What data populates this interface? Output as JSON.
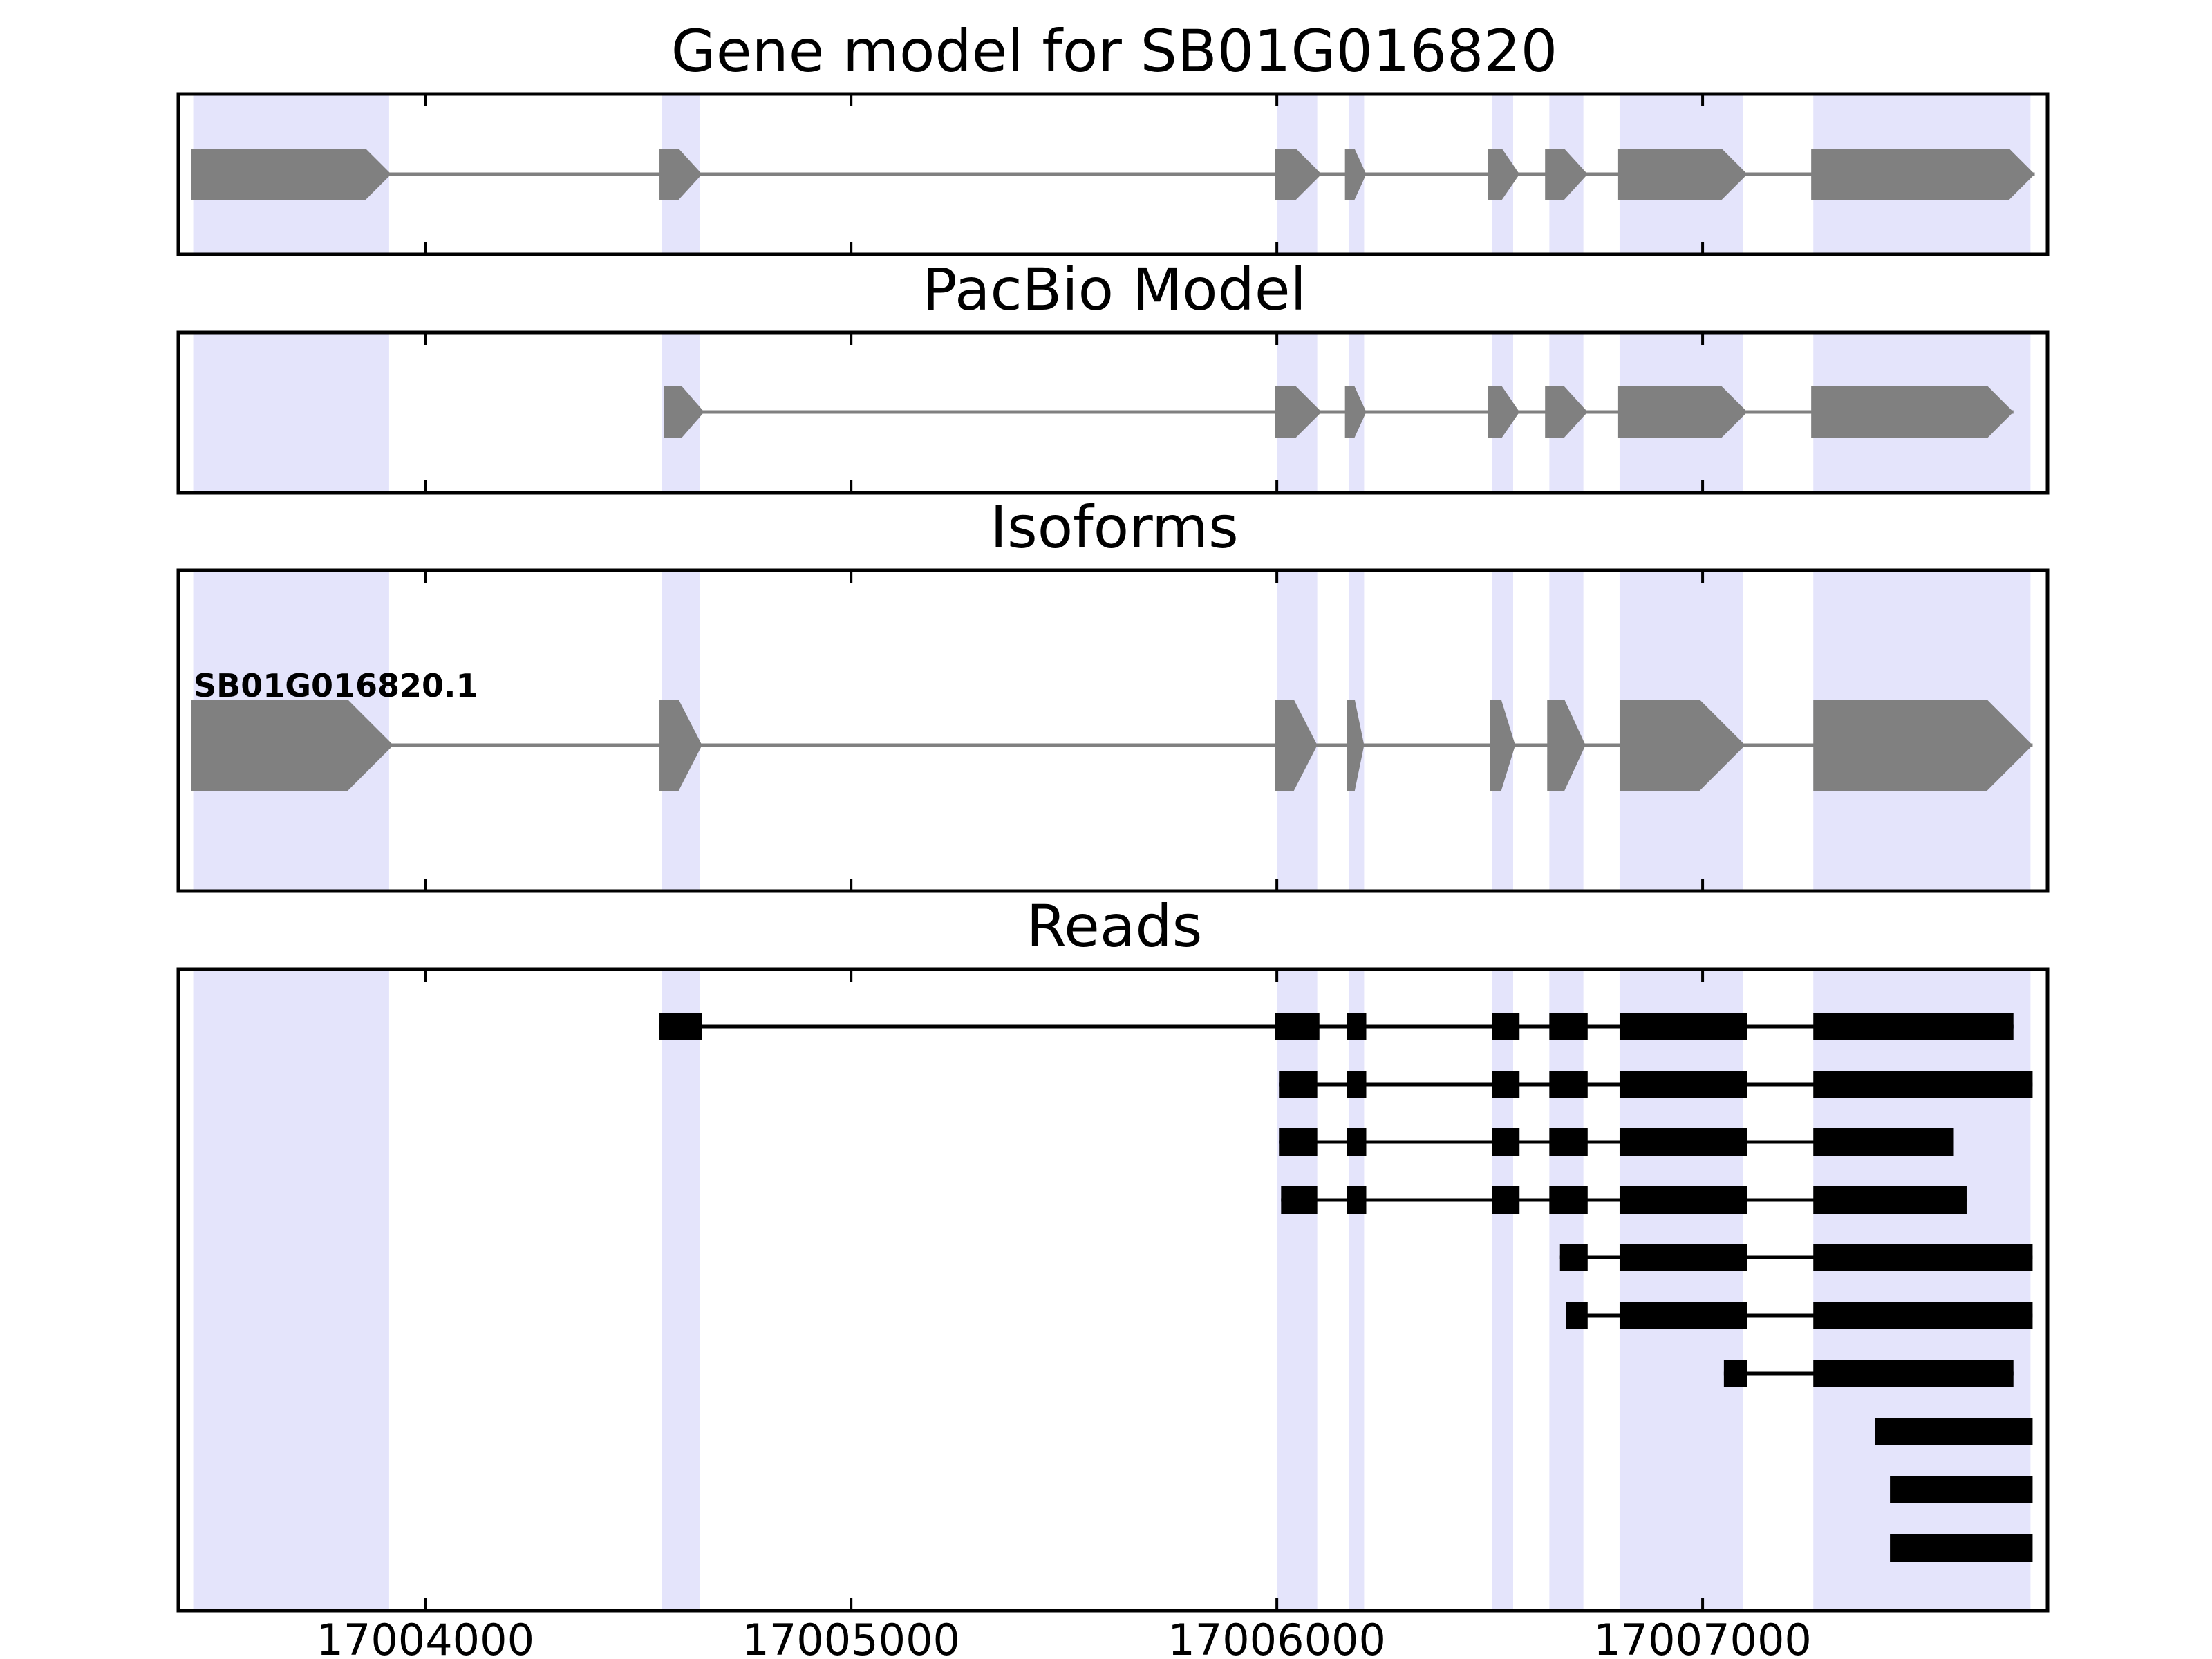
{
  "chart_data": {
    "type": "gene-structure",
    "x_axis": {
      "range": [
        17003420,
        17007810
      ],
      "ticks": [
        17004000,
        17005000,
        17006000,
        17007000
      ],
      "tick_labels": [
        "17004000",
        "17005000",
        "17006000",
        "17007000"
      ]
    },
    "colors": {
      "highlight": "#e4e4fb",
      "gene_feature": "#808080",
      "read": "#000000",
      "frame": "#000000",
      "background": "#ffffff"
    },
    "exon_highlights": [
      [
        17003455,
        17003915
      ],
      [
        17004555,
        17004645
      ],
      [
        17006000,
        17006095
      ],
      [
        17006170,
        17006205
      ],
      [
        17006505,
        17006555
      ],
      [
        17006640,
        17006720
      ],
      [
        17006805,
        17007095
      ],
      [
        17007260,
        17007770
      ]
    ],
    "panels": [
      {
        "id": "gene-model",
        "title": "Gene model for SB01G016820",
        "kind": "model",
        "exons": [
          [
            17003450,
            17003920
          ],
          [
            17004550,
            17004650
          ],
          [
            17005995,
            17006105
          ],
          [
            17006160,
            17006210
          ],
          [
            17006495,
            17006570
          ],
          [
            17006630,
            17006730
          ],
          [
            17006800,
            17007105
          ],
          [
            17007255,
            17007780
          ]
        ]
      },
      {
        "id": "pacbio-model",
        "title": "PacBio Model",
        "kind": "model",
        "exons": [
          [
            17004560,
            17004655
          ],
          [
            17005995,
            17006105
          ],
          [
            17006160,
            17006210
          ],
          [
            17006495,
            17006570
          ],
          [
            17006630,
            17006730
          ],
          [
            17006800,
            17007105
          ],
          [
            17007255,
            17007730
          ]
        ]
      },
      {
        "id": "isoforms",
        "title": "Isoforms",
        "kind": "model",
        "isoform_label": "SB01G016820.1",
        "exons": [
          [
            17003450,
            17003925
          ],
          [
            17004550,
            17004650
          ],
          [
            17005995,
            17006095
          ],
          [
            17006165,
            17006205
          ],
          [
            17006500,
            17006560
          ],
          [
            17006635,
            17006725
          ],
          [
            17006805,
            17007100
          ],
          [
            17007260,
            17007775
          ]
        ]
      },
      {
        "id": "reads",
        "title": "Reads",
        "kind": "reads",
        "reads": [
          [
            [
              17004550,
              17004650
            ],
            [
              17005995,
              17006100
            ],
            [
              17006165,
              17006210
            ],
            [
              17006505,
              17006570
            ],
            [
              17006640,
              17006730
            ],
            [
              17006805,
              17007105
            ],
            [
              17007260,
              17007730
            ]
          ],
          [
            [
              17006005,
              17006095
            ],
            [
              17006165,
              17006210
            ],
            [
              17006505,
              17006570
            ],
            [
              17006640,
              17006730
            ],
            [
              17006805,
              17007105
            ],
            [
              17007260,
              17007775
            ]
          ],
          [
            [
              17006005,
              17006095
            ],
            [
              17006165,
              17006210
            ],
            [
              17006505,
              17006570
            ],
            [
              17006640,
              17006730
            ],
            [
              17006805,
              17007105
            ],
            [
              17007260,
              17007590
            ]
          ],
          [
            [
              17006010,
              17006095
            ],
            [
              17006165,
              17006210
            ],
            [
              17006505,
              17006570
            ],
            [
              17006640,
              17006730
            ],
            [
              17006805,
              17007105
            ],
            [
              17007260,
              17007620
            ]
          ],
          [
            [
              17006665,
              17006730
            ],
            [
              17006805,
              17007105
            ],
            [
              17007260,
              17007775
            ]
          ],
          [
            [
              17006680,
              17006730
            ],
            [
              17006805,
              17007105
            ],
            [
              17007260,
              17007775
            ]
          ],
          [
            [
              17007050,
              17007105
            ],
            [
              17007260,
              17007730
            ]
          ],
          [
            [
              17007405,
              17007775
            ]
          ],
          [
            [
              17007440,
              17007775
            ]
          ],
          [
            [
              17007440,
              17007775
            ]
          ]
        ]
      }
    ]
  }
}
